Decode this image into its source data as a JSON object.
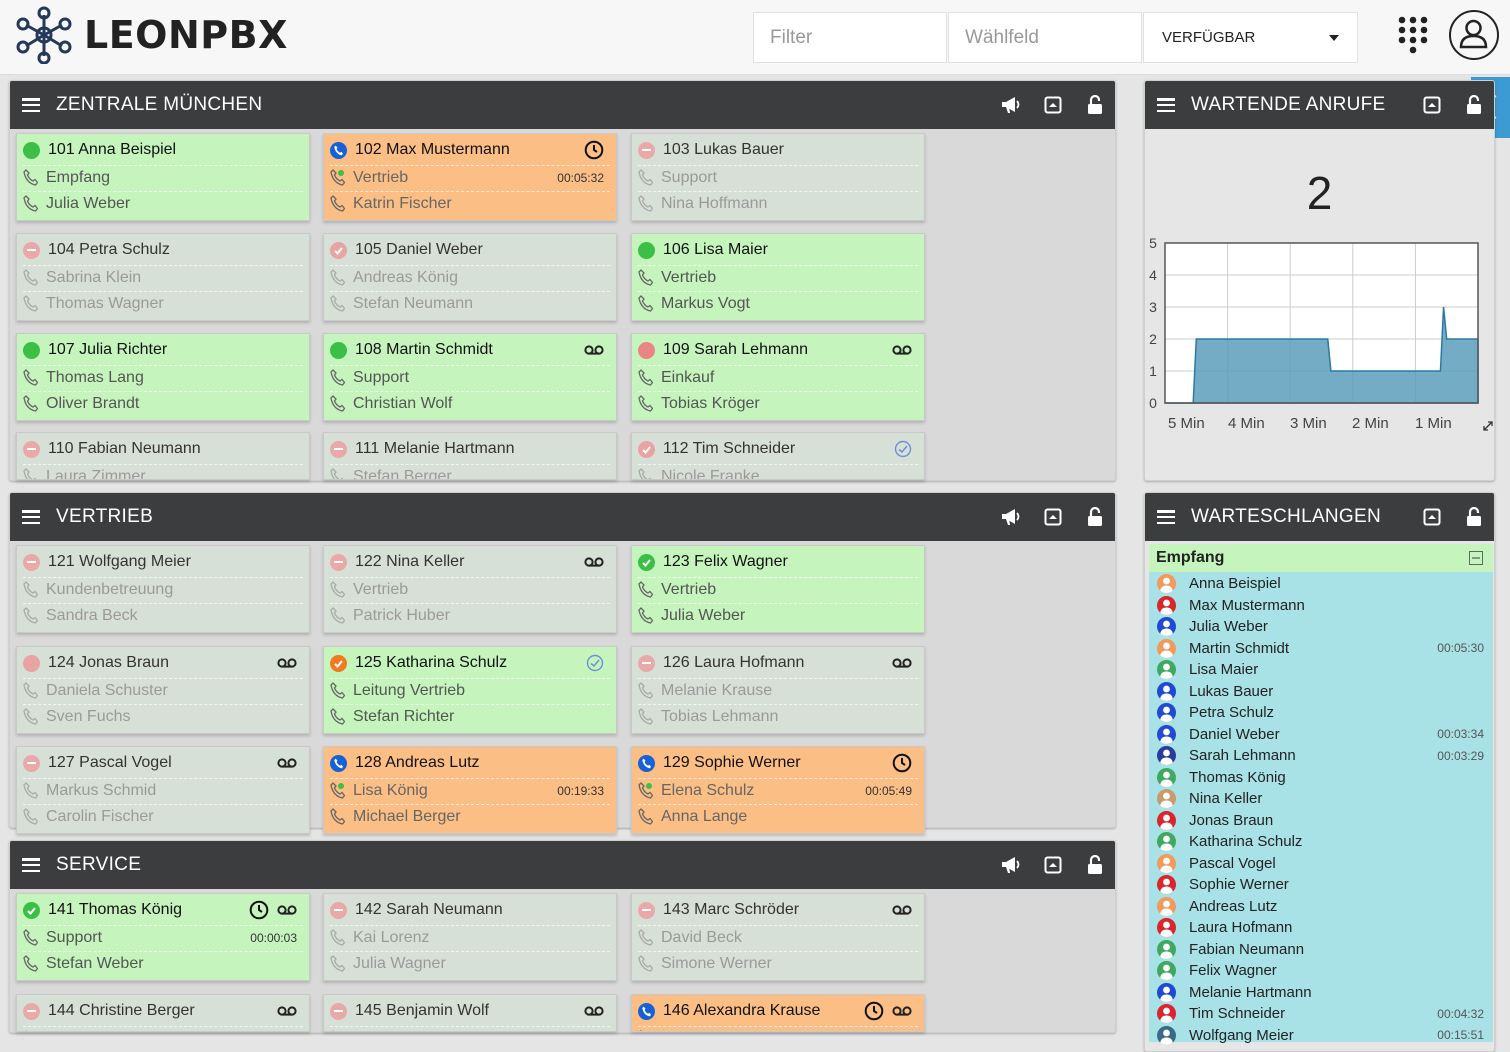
{
  "app": {
    "brand": "LEONPBX"
  },
  "toolbar": {
    "filter_placeholder": "Filter",
    "dial_placeholder": "Wählfeld",
    "status_value": "VERFÜGBAR"
  },
  "panels": {
    "zentrale": {
      "title": "ZENTRALE MÜNCHEN"
    },
    "vertrieb": {
      "title": "VERTRIEB"
    },
    "service": {
      "title": "SERVICE"
    },
    "wartende": {
      "title": "WARTENDE ANRUFE",
      "count": "2"
    },
    "warteschlangen": {
      "title": "WARTESCHLANGEN",
      "group": "Empfang"
    }
  },
  "cards": [
    {
      "name": "101  Anna Beispiel",
      "l2": "Empfang",
      "l3": "Julia Weber",
      "color": "green",
      "status": "green"
    },
    {
      "name": "102  Max Mustermann",
      "l2": "Vertrieb",
      "l3": "Katrin Fischer",
      "color": "orange",
      "status": "blue",
      "time": "00:05:32",
      "icons": [
        "clock"
      ]
    },
    {
      "name": "103  Lukas Bauer",
      "l2": "Support",
      "l3": "Nina Hoffmann",
      "color": "grey",
      "status": "dnd"
    },
    {
      "name": "104  Petra Schulz",
      "l2": "Sabrina Klein",
      "l3": "Thomas Wagner",
      "color": "grey",
      "status": "dnd"
    },
    {
      "name": "105  Daniel Weber",
      "l2": "Andreas König",
      "l3": "Stefan Neumann",
      "color": "grey",
      "status": "pinkchk"
    },
    {
      "name": "106  Lisa Maier",
      "l2": "Vertrieb",
      "l3": "Markus Vogt",
      "color": "green",
      "status": "green"
    },
    {
      "name": "107  Julia Richter",
      "l2": "Thomas Lang",
      "l3": "Oliver Brandt",
      "color": "green",
      "status": "green"
    },
    {
      "name": "108  Martin Schmidt",
      "l2": "Support",
      "l3": "Christian Wolf",
      "color": "green",
      "status": "green",
      "icons": [
        "vm"
      ]
    },
    {
      "name": "109  Sarah Lehmann",
      "l2": "Einkauf",
      "l3": "Tobias Kröger",
      "color": "green",
      "status": "red",
      "icons": [
        "vm"
      ]
    },
    {
      "name": "110  Fabian Neumann",
      "l2": "Laura Zimmer",
      "l3": "",
      "color": "grey",
      "status": "dnd"
    },
    {
      "name": "111  Melanie Hartmann",
      "l2": "Stefan Berger",
      "l3": "",
      "color": "grey",
      "status": "dnd"
    },
    {
      "name": "112  Tim Schneider",
      "l2": "Nicole Franke",
      "l3": "",
      "color": "grey",
      "status": "pinkchk",
      "icons": [
        "checkc"
      ]
    },
    {
      "name": "121  Wolfgang Meier",
      "l2": "Kundenbetreuung",
      "l3": "Sandra Beck",
      "color": "grey",
      "status": "dnd"
    },
    {
      "name": "122  Nina Keller",
      "l2": "Vertrieb",
      "l3": "Patrick Huber",
      "color": "grey",
      "status": "dnd",
      "icons": [
        "vm"
      ]
    },
    {
      "name": "123  Felix Wagner",
      "l2": "Vertrieb",
      "l3": "Julia Weber",
      "color": "green",
      "status": "check"
    },
    {
      "name": "124  Jonas Braun",
      "l2": "Daniela Schuster",
      "l3": "Sven Fuchs",
      "color": "grey",
      "status": "pink",
      "icons": [
        "vm"
      ]
    },
    {
      "name": "125  Katharina Schulz",
      "l2": "Leitung Vertrieb",
      "l3": "Stefan Richter",
      "color": "green",
      "status": "orangechk",
      "icons": [
        "checkc"
      ]
    },
    {
      "name": "126  Laura Hofmann",
      "l2": "Melanie Krause",
      "l3": "Tobias Lehmann",
      "color": "grey",
      "status": "dnd",
      "icons": [
        "vm"
      ]
    },
    {
      "name": "127  Pascal Vogel",
      "l2": "Markus Schmid",
      "l3": "Carolin Fischer",
      "color": "grey",
      "status": "dnd",
      "icons": [
        "vm"
      ]
    },
    {
      "name": "128  Andreas Lutz",
      "l2": "Lisa König",
      "l3": "Michael Berger",
      "color": "orange",
      "status": "blue",
      "time": "00:19:33"
    },
    {
      "name": "129  Sophie Werner",
      "l2": "Elena Schulz",
      "l3": "Anna Lange",
      "color": "orange",
      "status": "blue",
      "time": "00:05:49",
      "icons": [
        "clock"
      ]
    },
    {
      "name": "141  Thomas König",
      "l2": "Support",
      "l3": "Stefan Weber",
      "color": "green",
      "status": "check",
      "time": "00:00:03",
      "icons": [
        "clock",
        "vm"
      ]
    },
    {
      "name": "142  Sarah Neumann",
      "l2": "Kai Lorenz",
      "l3": "Julia Wagner",
      "color": "grey",
      "status": "dnd"
    },
    {
      "name": "143  Marc Schröder",
      "l2": "David Beck",
      "l3": "Simone Werner",
      "color": "grey",
      "status": "dnd",
      "icons": [
        "vm"
      ]
    },
    {
      "name": "144  Christine Berger",
      "l2": "",
      "l3": "",
      "color": "grey",
      "status": "dnd",
      "icons": [
        "vm"
      ]
    },
    {
      "name": "145  Benjamin Wolf",
      "l2": "",
      "l3": "",
      "color": "grey",
      "status": "dnd",
      "icons": [
        "vm"
      ]
    },
    {
      "name": "146  Alexandra Krause",
      "l2": "",
      "l3": "",
      "color": "orange",
      "status": "blue",
      "icons": [
        "clock",
        "vm"
      ]
    }
  ],
  "chart_data": {
    "type": "area",
    "x_tick_labels": [
      "5 Min",
      "4 Min",
      "3 Min",
      "2 Min",
      "1 Min"
    ],
    "ylim": [
      0,
      5
    ],
    "y_ticks": [
      0,
      1,
      2,
      3,
      4,
      5
    ],
    "series": [
      {
        "x": [
          0,
          0.45,
          0.5,
          2.6,
          2.65,
          4.4,
          4.45,
          4.5,
          4.55,
          5
        ],
        "values": [
          0,
          0,
          2,
          2,
          1,
          1,
          3,
          2,
          2,
          2
        ]
      }
    ],
    "grid": true,
    "color": "#3b8fb5"
  },
  "queue": [
    {
      "name": "Anna Beispiel",
      "c": "#f39a5a"
    },
    {
      "name": "Max Mustermann",
      "c": "#d9252b"
    },
    {
      "name": "Julia Weber",
      "c": "#1f4ad1"
    },
    {
      "name": "Martin Schmidt",
      "c": "#f39a5a",
      "time": "00:05:30"
    },
    {
      "name": "Lisa Maier",
      "c": "#3fa95f"
    },
    {
      "name": "Lukas Bauer",
      "c": "#1f4ad1"
    },
    {
      "name": "Petra Schulz",
      "c": "#1f4ad1"
    },
    {
      "name": "Daniel Weber",
      "c": "#1f4ad1",
      "time": "00:03:34"
    },
    {
      "name": "Sarah Lehmann",
      "c": "#2a3b9e",
      "time": "00:03:29"
    },
    {
      "name": "Thomas König",
      "c": "#3fa95f"
    },
    {
      "name": "Nina Keller",
      "c": "#c99a6a"
    },
    {
      "name": "Jonas Braun",
      "c": "#d9252b"
    },
    {
      "name": "Katharina Schulz",
      "c": "#3fa95f"
    },
    {
      "name": "Pascal Vogel",
      "c": "#f39a5a"
    },
    {
      "name": "Sophie Werner",
      "c": "#d9252b"
    },
    {
      "name": "Andreas Lutz",
      "c": "#f39a5a"
    },
    {
      "name": "Laura Hofmann",
      "c": "#d9252b"
    },
    {
      "name": "Fabian Neumann",
      "c": "#3fa95f"
    },
    {
      "name": "Felix Wagner",
      "c": "#3fa95f"
    },
    {
      "name": "Melanie Hartmann",
      "c": "#1f4ad1"
    },
    {
      "name": "Tim Schneider",
      "c": "#d9252b",
      "time": "00:04:32"
    },
    {
      "name": "Wolfgang Meier",
      "c": "#3a6a8a",
      "time": "00:15:51"
    }
  ]
}
